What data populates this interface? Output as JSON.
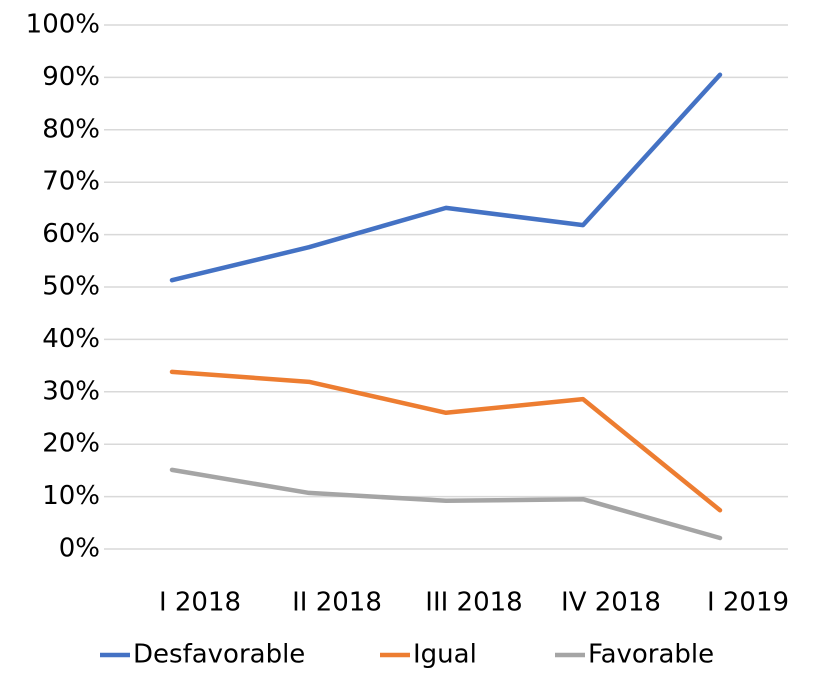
{
  "chart_data": {
    "type": "line",
    "categories": [
      "I 2018",
      "II 2018",
      "III 2018",
      "IV 2018",
      "I 2019"
    ],
    "series": [
      {
        "name": "Desfavorable",
        "color": "#4472c4",
        "values": [
          51.3,
          57.6,
          65.1,
          61.8,
          90.5
        ]
      },
      {
        "name": "Igual",
        "color": "#ed7d31",
        "values": [
          33.8,
          31.9,
          26.0,
          28.6,
          7.4
        ]
      },
      {
        "name": "Favorable",
        "color": "#a5a5a5",
        "values": [
          15.1,
          10.7,
          9.2,
          9.5,
          2.1
        ]
      }
    ],
    "ylim": [
      0,
      100
    ],
    "yticks": [
      {
        "value": 0,
        "label": "0%"
      },
      {
        "value": 10,
        "label": "10%"
      },
      {
        "value": 20,
        "label": "20%"
      },
      {
        "value": 30,
        "label": "30%"
      },
      {
        "value": 40,
        "label": "40%"
      },
      {
        "value": 50,
        "label": "50%"
      },
      {
        "value": 60,
        "label": "60%"
      },
      {
        "value": 70,
        "label": "70%"
      },
      {
        "value": 80,
        "label": "80%"
      },
      {
        "value": 90,
        "label": "90%"
      },
      {
        "value": 100,
        "label": "100%"
      }
    ],
    "grid": true,
    "legend": "bottom"
  }
}
